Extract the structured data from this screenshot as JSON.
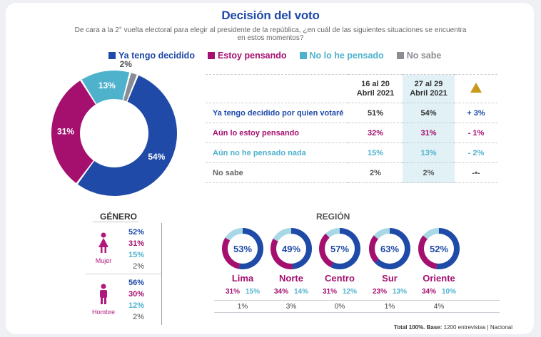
{
  "title": "Decisión del voto",
  "subtitle": "De cara a la 2° vuelta electoral para elegir al presidente de la república, ¿en cuál de las siguientes situaciones se encuentra en estos momentos?",
  "legend": [
    {
      "label": "Ya tengo decidido",
      "color": "#1f4aa8"
    },
    {
      "label": "Estoy pensando",
      "color": "#a5106f"
    },
    {
      "label": "No lo he pensado",
      "color": "#4fb2cd"
    },
    {
      "label": "No sabe",
      "color": "#8a8d93"
    }
  ],
  "chart_data": [
    {
      "type": "pie",
      "donut": true,
      "categories": [
        "Ya tengo decidido",
        "Estoy pensando",
        "No lo he pensado",
        "No sabe"
      ],
      "values": [
        54,
        31,
        13,
        2
      ],
      "labels": [
        "54%",
        "31%",
        "13%",
        "2%"
      ],
      "colors": [
        "#1f4aa8",
        "#a5106f",
        "#4fb2cd",
        "#8a8d93"
      ]
    },
    {
      "type": "table",
      "columns": [
        "16 al 20 Abril 2021",
        "27 al 29 Abril 2021",
        "variation"
      ],
      "rows": [
        {
          "label": "Ya tengo decidido por quien votaré",
          "v1": "51%",
          "v2": "54%",
          "diff": "+ 3%",
          "color": "#1f4aa8"
        },
        {
          "label": "Aún lo estoy pensando",
          "v1": "32%",
          "v2": "31%",
          "diff": "- 1%",
          "color": "#a5106f"
        },
        {
          "label": "Aún no he pensado nada",
          "v1": "15%",
          "v2": "13%",
          "diff": "- 2%",
          "color": "#4fb2cd"
        },
        {
          "label": "No sabe",
          "v1": "2%",
          "v2": "2%",
          "diff": "-•-",
          "color": "#666666"
        }
      ]
    },
    {
      "type": "table",
      "title": "GÉNERO",
      "groups": [
        {
          "name": "Mujer",
          "values": [
            "52%",
            "31%",
            "15%",
            "2%"
          ]
        },
        {
          "name": "Hombre",
          "values": [
            "56%",
            "30%",
            "12%",
            "2%"
          ]
        }
      ]
    },
    {
      "type": "pie",
      "title": "REGIÓN",
      "regions": [
        {
          "name": "Lima",
          "decided": 53,
          "label": "53%",
          "pensando": "31%",
          "no_pensado": "15%",
          "no_sabe": "1%"
        },
        {
          "name": "Norte",
          "decided": 49,
          "label": "49%",
          "pensando": "34%",
          "no_pensado": "14%",
          "no_sabe": "3%"
        },
        {
          "name": "Centro",
          "decided": 57,
          "label": "57%",
          "pensando": "31%",
          "no_pensado": "12%",
          "no_sabe": "0%"
        },
        {
          "name": "Sur",
          "decided": 63,
          "label": "63%",
          "pensando": "23%",
          "no_pensado": "13%",
          "no_sabe": "1%"
        },
        {
          "name": "Oriente",
          "decided": 52,
          "label": "52%",
          "pensando": "34%",
          "no_pensado": "10%",
          "no_sabe": "4%"
        }
      ]
    }
  ],
  "table": {
    "header1": "16 al 20\nAbril 2021",
    "header2": "27 al 29\nAbril 2021"
  },
  "footer": {
    "bold": "Total 100%. Base:",
    "text": " 1200 entrevistas | Nacional"
  }
}
